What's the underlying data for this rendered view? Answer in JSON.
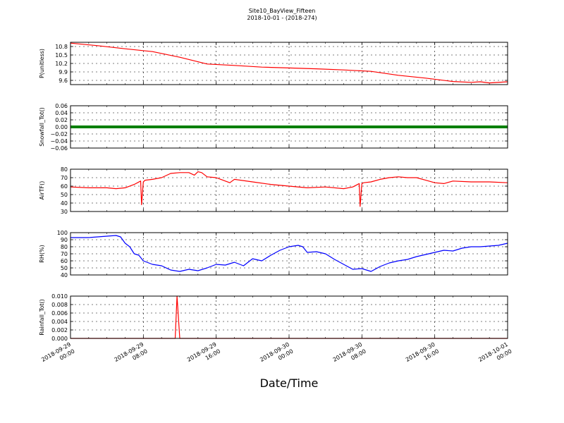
{
  "figure": {
    "title": "Site10_BayView_Fifteen",
    "subtitle": "2018-10-01 - (2018-274)",
    "xlabel": "Date/Time"
  },
  "chart_data": [
    {
      "type": "line",
      "ylabel": "P(unitless)",
      "ylim": [
        9.45,
        10.95
      ],
      "yticks": [
        9.6,
        9.9,
        10.2,
        10.5,
        10.8
      ],
      "ytick_labels": [
        "9.6",
        "9.9",
        "10.2",
        "10.5",
        "10.8"
      ],
      "xlim": [
        "2018-09-29 00:00",
        "2018-10-01 00:00"
      ],
      "grid": true,
      "color": "#ff0000",
      "series": [
        {
          "x": [
            0,
            3,
            6,
            9,
            12,
            15,
            18,
            21,
            24,
            27,
            30,
            33,
            36,
            39,
            42,
            44,
            45,
            46,
            48
          ],
          "y": [
            10.92,
            10.83,
            10.72,
            10.62,
            10.42,
            10.18,
            10.13,
            10.07,
            10.04,
            10.01,
            9.97,
            9.92,
            9.78,
            9.68,
            9.56,
            9.53,
            9.55,
            9.51,
            9.55
          ]
        }
      ]
    },
    {
      "type": "line",
      "ylabel": "Snowfall_Tot()",
      "ylim": [
        -0.06,
        0.06
      ],
      "yticks": [
        -0.06,
        -0.04,
        -0.02,
        0.0,
        0.02,
        0.04,
        0.06
      ],
      "ytick_labels": [
        "−0.06",
        "−0.04",
        "−0.02",
        "0.00",
        "0.02",
        "0.04",
        "0.06"
      ],
      "xlim": [
        "2018-09-29 00:00",
        "2018-10-01 00:00"
      ],
      "grid": true,
      "color": "#008000",
      "series": [
        {
          "x": [
            0,
            48
          ],
          "y": [
            0,
            0
          ]
        }
      ]
    },
    {
      "type": "line",
      "ylabel": "AirTF()",
      "ylim": [
        30,
        80
      ],
      "yticks": [
        30,
        40,
        50,
        60,
        70,
        80
      ],
      "ytick_labels": [
        "30",
        "40",
        "50",
        "60",
        "70",
        "80"
      ],
      "xlim": [
        "2018-09-29 00:00",
        "2018-10-01 00:00"
      ],
      "grid": true,
      "color": "#ff0000",
      "series": [
        {
          "x": [
            0,
            2,
            4,
            5,
            6,
            7,
            7.7,
            7.8,
            8,
            8.2,
            9,
            10,
            11,
            12,
            13,
            13.6,
            14,
            14.4,
            15,
            16,
            17,
            17.5,
            18,
            20,
            22,
            24,
            26,
            28,
            30,
            31,
            31.7,
            31.8,
            32,
            32.2,
            33,
            34,
            35,
            36,
            37,
            38,
            39,
            40,
            41,
            42,
            44,
            46,
            48
          ],
          "y": [
            59,
            58,
            58,
            57,
            58,
            62,
            66,
            38,
            65,
            67,
            68,
            70,
            75,
            76,
            76,
            73,
            77,
            76,
            71,
            70,
            66,
            64,
            68,
            65,
            62,
            60,
            58,
            59,
            57,
            59,
            63,
            36,
            63,
            64,
            65,
            68,
            70,
            71,
            70,
            70,
            67,
            64,
            63,
            66,
            65,
            65,
            64
          ]
        }
      ]
    },
    {
      "type": "line",
      "ylabel": "RH(%)",
      "ylim": [
        40,
        100
      ],
      "yticks": [
        40,
        50,
        60,
        70,
        80,
        90,
        100
      ],
      "ytick_labels": [
        "40",
        "50",
        "60",
        "70",
        "80",
        "90",
        "100"
      ],
      "xlim": [
        "2018-09-29 00:00",
        "2018-10-01 00:00"
      ],
      "grid": true,
      "color": "#0000ff",
      "series": [
        {
          "x": [
            0,
            2,
            4,
            5,
            5.5,
            6,
            6.5,
            7,
            7.5,
            8,
            9,
            10,
            11,
            12,
            13,
            14,
            15,
            16,
            17,
            18,
            19,
            20,
            21,
            22,
            23,
            24,
            25,
            25.5,
            26,
            27,
            28,
            29,
            30,
            31,
            32,
            33,
            34,
            35,
            36,
            37,
            38,
            39,
            40,
            41,
            42,
            43,
            44,
            45,
            46,
            47,
            48
          ],
          "y": [
            93,
            93,
            95,
            96,
            94,
            85,
            80,
            70,
            68,
            60,
            55,
            53,
            47,
            45,
            48,
            46,
            50,
            55,
            54,
            58,
            53,
            63,
            60,
            68,
            75,
            80,
            82,
            80,
            72,
            73,
            70,
            62,
            55,
            48,
            49,
            45,
            52,
            57,
            60,
            62,
            66,
            69,
            72,
            75,
            74,
            78,
            80,
            80,
            81,
            82,
            85
          ]
        }
      ]
    },
    {
      "type": "line",
      "ylabel": "Rainfall_Tot()",
      "ylim": [
        0,
        0.01
      ],
      "yticks": [
        0.0,
        0.002,
        0.004,
        0.006,
        0.008,
        0.01
      ],
      "ytick_labels": [
        "0.000",
        "0.002",
        "0.004",
        "0.006",
        "0.008",
        "0.010"
      ],
      "xlim": [
        "2018-09-29 00:00",
        "2018-10-01 00:00"
      ],
      "grid": true,
      "color": "#ff0000",
      "series": [
        {
          "x": [
            0,
            11.5,
            11.7,
            12.0,
            48
          ],
          "y": [
            0,
            0,
            0.01,
            0,
            0
          ]
        }
      ]
    }
  ],
  "x_ticks": [
    {
      "line1": "2018-09-29",
      "line2": "00:00"
    },
    {
      "line1": "2018-09-29",
      "line2": "08:00"
    },
    {
      "line1": "2018-09-29",
      "line2": "16:00"
    },
    {
      "line1": "2018-09-30",
      "line2": "00:00"
    },
    {
      "line1": "2018-09-30",
      "line2": "08:00"
    },
    {
      "line1": "2018-09-30",
      "line2": "16:00"
    },
    {
      "line1": "2018-10-01",
      "line2": "00:00"
    }
  ]
}
